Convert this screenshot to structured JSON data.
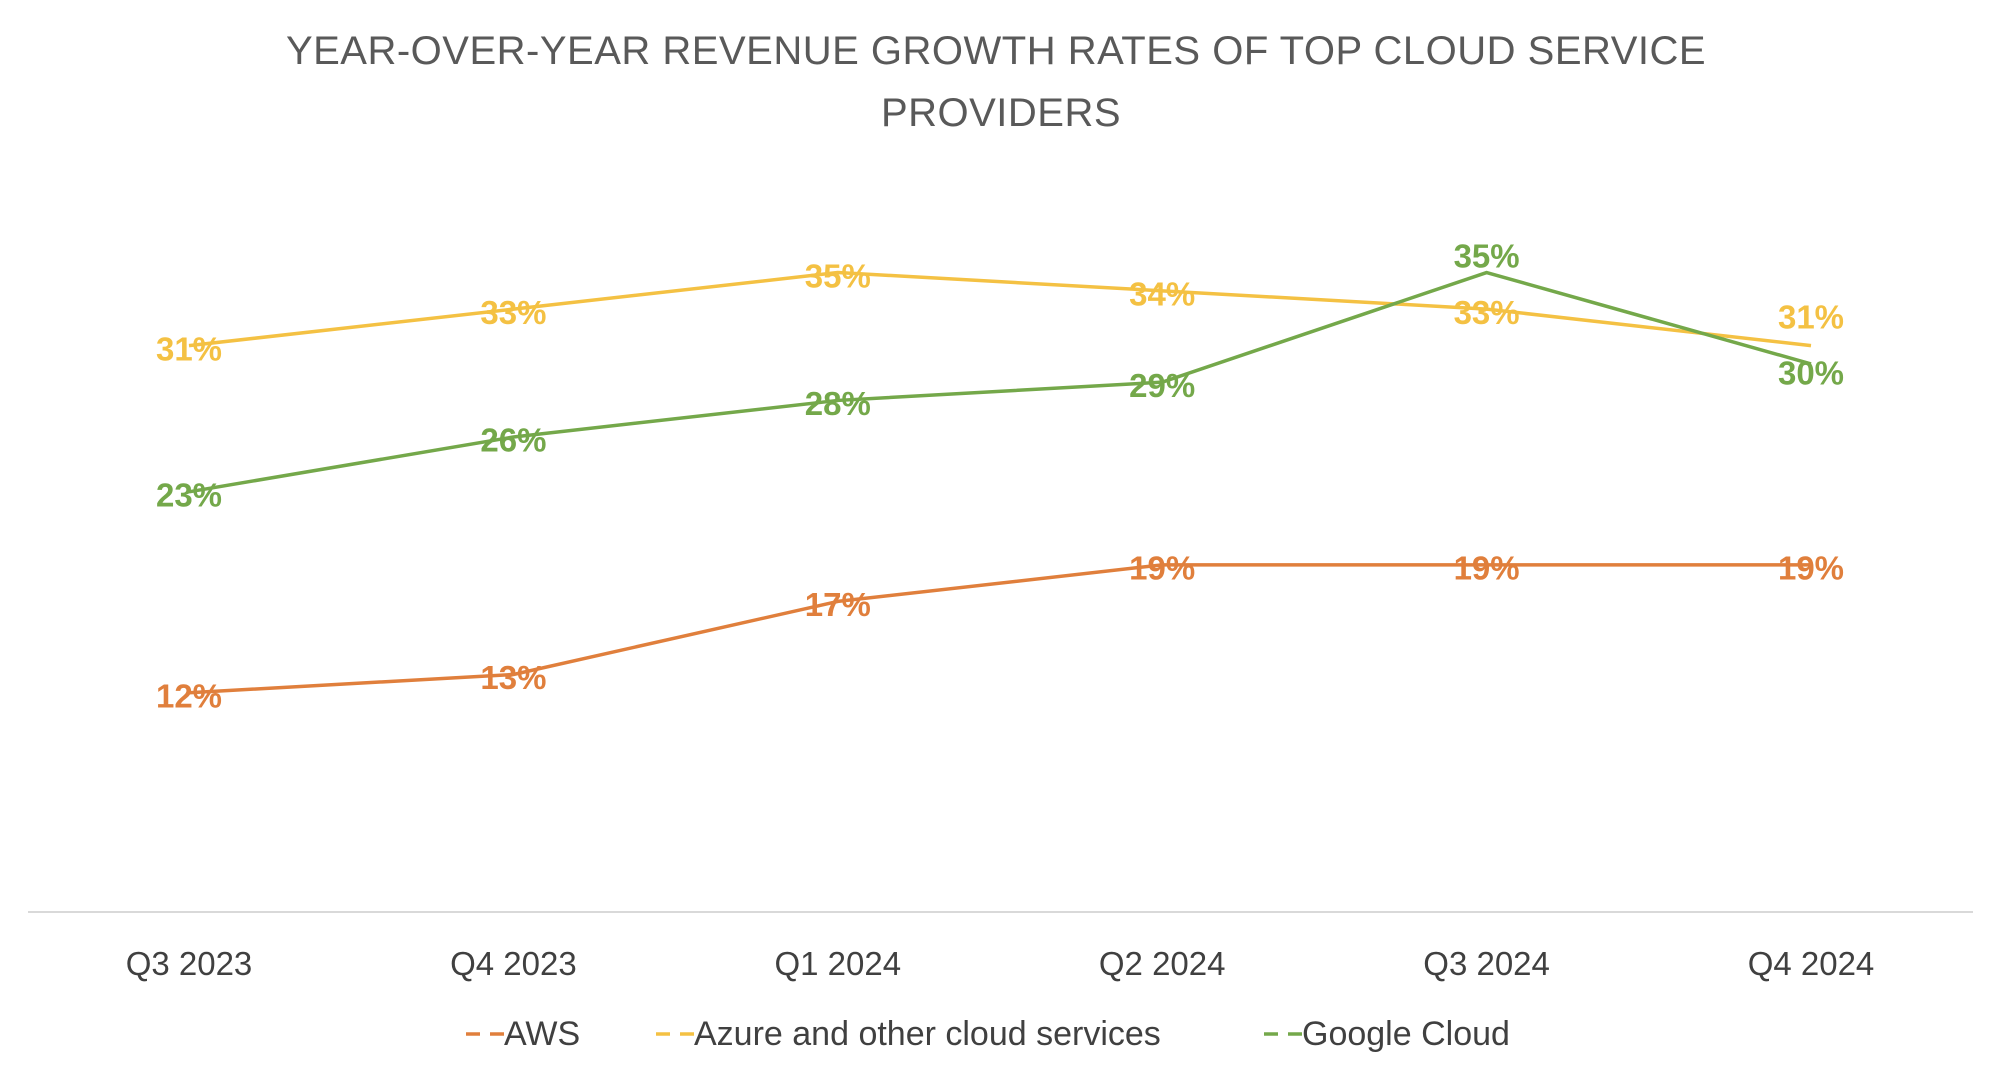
{
  "chart_data": {
    "type": "line",
    "title": "YEAR-OVER-YEAR REVENUE GROWTH RATES OF TOP CLOUD SERVICE PROVIDERS",
    "title_lines": [
      "YEAR-OVER-YEAR REVENUE GROWTH RATES OF TOP CLOUD SERVICE",
      "PROVIDERS"
    ],
    "categories": [
      "Q3 2023",
      "Q4 2023",
      "Q1 2024",
      "Q2 2024",
      "Q3 2024",
      "Q4 2024"
    ],
    "xlabel": "",
    "ylabel": "",
    "ylim": [
      0,
      38
    ],
    "grid": false,
    "y_axis_visible": false,
    "legend_position": "bottom",
    "data_label_format": "percent",
    "series": [
      {
        "name": "AWS",
        "color": "#E07F3C",
        "values": [
          12,
          13,
          17,
          19,
          19,
          19
        ]
      },
      {
        "name": "Azure and other cloud services",
        "color": "#F4C143",
        "values": [
          31,
          33,
          35,
          34,
          33,
          31
        ]
      },
      {
        "name": "Google Cloud",
        "color": "#74A84A",
        "values": [
          23,
          26,
          28,
          29,
          35,
          30
        ]
      }
    ]
  }
}
